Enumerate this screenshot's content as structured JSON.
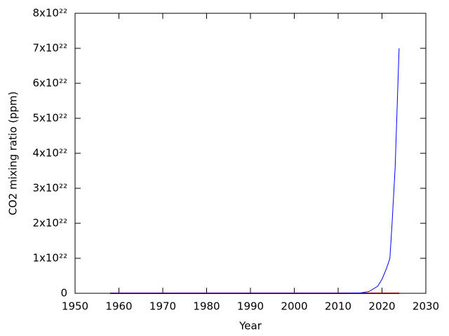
{
  "chart_data": {
    "type": "line",
    "x_label": "Year",
    "y_label": "CO2 mixing ratio (ppm)",
    "xlim": [
      1950,
      2030
    ],
    "xticks": [
      1950,
      1960,
      1970,
      1980,
      1990,
      2000,
      2010,
      2020,
      2030
    ],
    "ylim": [
      0,
      8e+22
    ],
    "yticks": [
      0,
      {
        "value": 1e+22,
        "label": "1x10²²"
      },
      {
        "value": 2e+22,
        "label": "2x10²²"
      },
      {
        "value": 3e+22,
        "label": "3x10²²"
      },
      {
        "value": 4e+22,
        "label": "4x10²²"
      },
      {
        "value": 5e+22,
        "label": "5x10²²"
      },
      {
        "value": 6e+22,
        "label": "6x10²²"
      },
      {
        "value": 7e+22,
        "label": "7x10²²"
      },
      {
        "value": 8e+22,
        "label": "8x10²²"
      }
    ],
    "series": [
      {
        "color": "#0000ff",
        "x": [
          1958,
          2010,
          2015,
          2017,
          2019,
          2020,
          2021,
          2021.8,
          2022.3,
          2023,
          2023.9
        ],
        "values": [
          0,
          0,
          1e+20,
          5e+20,
          2e+21,
          4e+21,
          7e+21,
          1e+22,
          2e+22,
          3.6e+22,
          7e+22
        ]
      },
      {
        "color": "#a00000",
        "x": [
          1958,
          1970,
          1980,
          1990,
          2000,
          2010,
          2023.9
        ],
        "values": [
          315,
          325,
          339,
          354,
          369,
          390,
          421
        ]
      }
    ]
  }
}
